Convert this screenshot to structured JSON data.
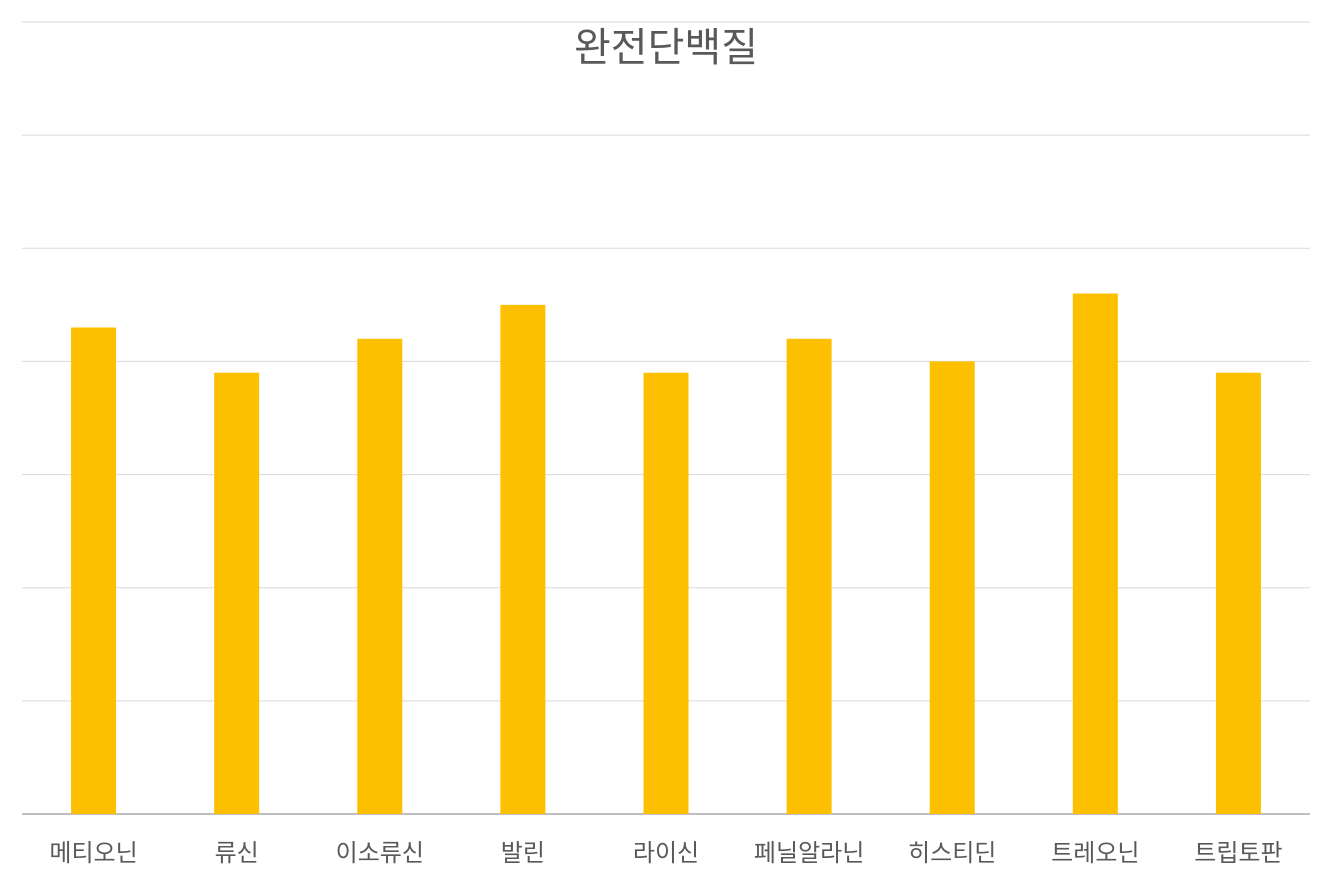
{
  "chart_data": {
    "type": "bar",
    "title": "완전단백질",
    "categories": [
      "메티오닌",
      "류신",
      "이소류신",
      "발린",
      "라이신",
      "페닐알라닌",
      "히스티딘",
      "트레오닌",
      "트립토판"
    ],
    "values": [
      4.3,
      3.9,
      4.2,
      4.5,
      3.9,
      4.2,
      4.0,
      4.6,
      3.9
    ],
    "color": "#fdc000",
    "ylim": [
      0,
      7
    ],
    "yticks": [
      0,
      1,
      2,
      3,
      4,
      5,
      6,
      7
    ],
    "grid": true
  }
}
